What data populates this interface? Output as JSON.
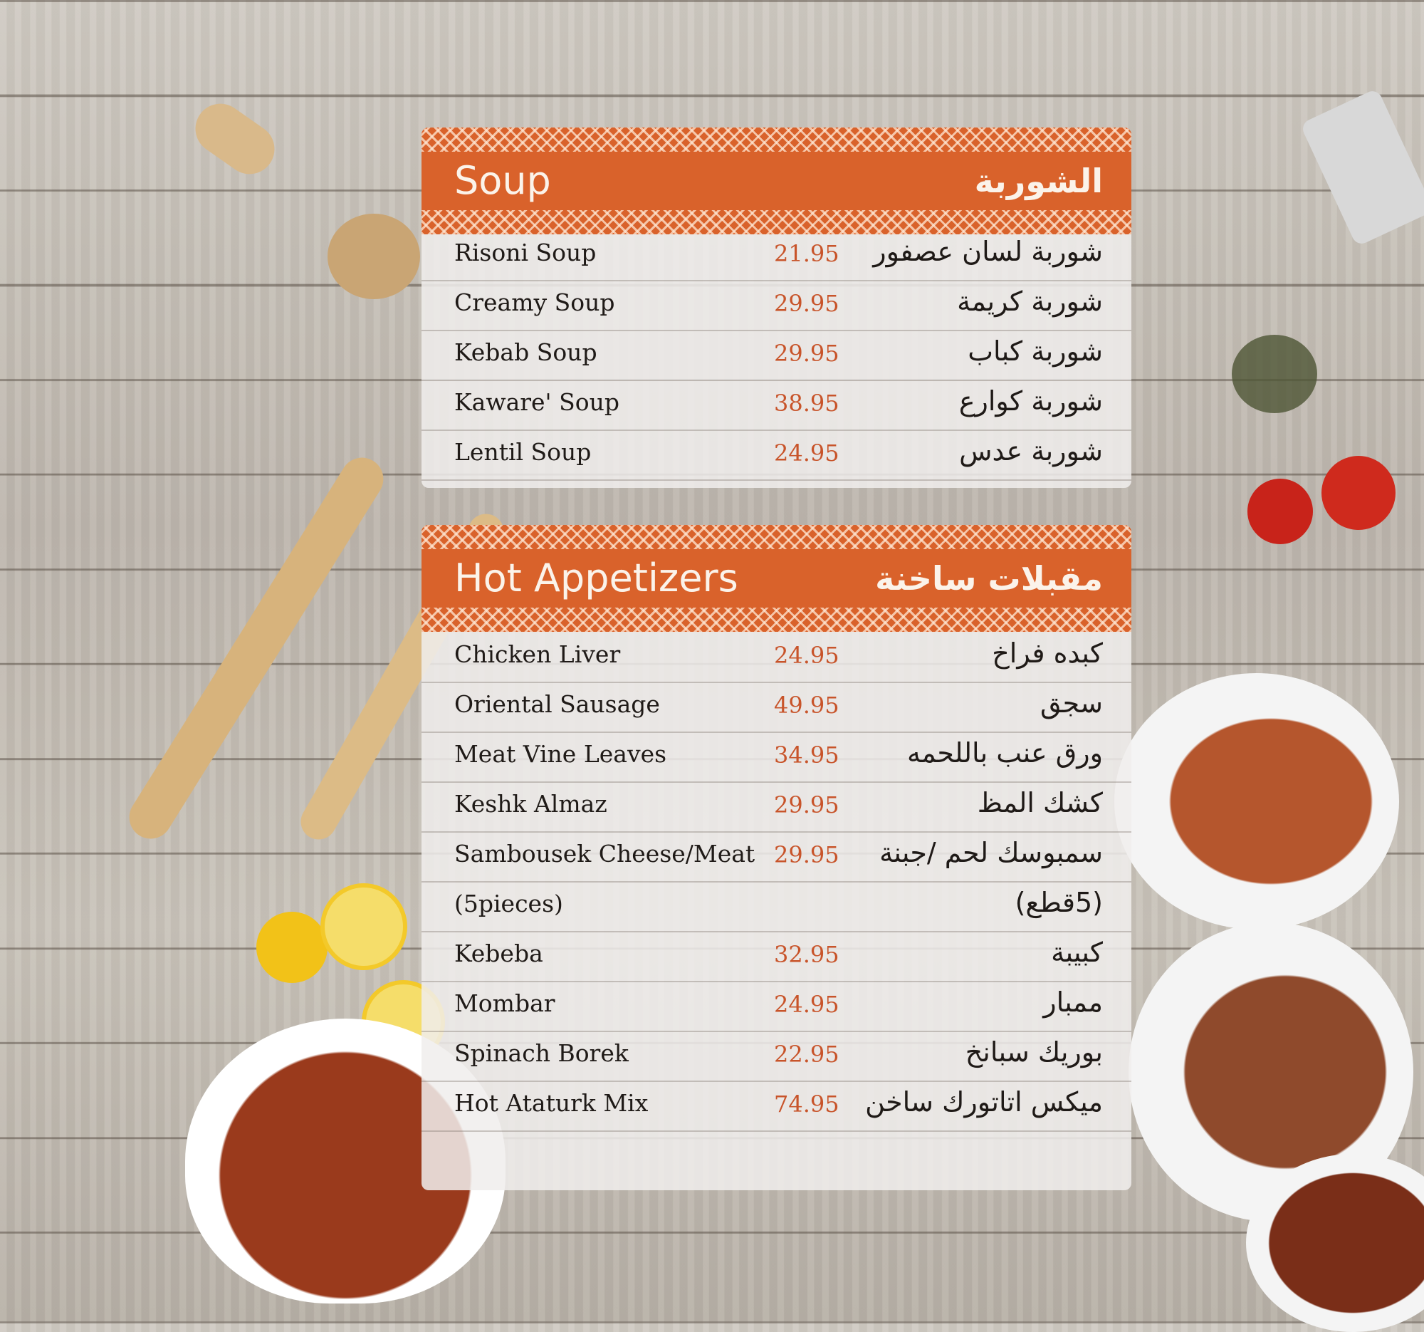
{
  "colors": {
    "accent": "#d9622b",
    "price": "#c8542a",
    "text": "#1f1a17"
  },
  "sections": [
    {
      "title": "Soup",
      "title_ar": "الشوربة",
      "items": [
        {
          "name": "Risoni Soup",
          "price": "21.95",
          "name_ar": "شوربة لسان عصفور"
        },
        {
          "name": "Creamy Soup",
          "price": "29.95",
          "name_ar": "شوربة كريمة"
        },
        {
          "name": "Kebab Soup",
          "price": "29.95",
          "name_ar": "شوربة كباب"
        },
        {
          "name": "Kaware' Soup",
          "price": "38.95",
          "name_ar": "شوربة كوارع"
        },
        {
          "name": "Lentil Soup",
          "price": "24.95",
          "name_ar": "شوربة عدس"
        }
      ]
    },
    {
      "title": "Hot Appetizers",
      "title_ar": "مقبلات ساخنة",
      "items": [
        {
          "name": "Chicken Liver",
          "price": "24.95",
          "name_ar": "كبده فراخ"
        },
        {
          "name": "Oriental Sausage",
          "price": "49.95",
          "name_ar": "سجق"
        },
        {
          "name": "Meat Vine Leaves",
          "price": "34.95",
          "name_ar": "ورق عنب باللحمه"
        },
        {
          "name": "Keshk Almaz",
          "price": "29.95",
          "name_ar": "كشك المظ"
        },
        {
          "name": "Sambousek Cheese/Meat",
          "price": "29.95",
          "name_ar": "سمبوسك لحم /جبنة"
        },
        {
          "name": "(5pieces)",
          "price": "",
          "name_ar": "(5قطع)"
        },
        {
          "name": "Kebeba",
          "price": "32.95",
          "name_ar": "كبيبة"
        },
        {
          "name": "Mombar",
          "price": "24.95",
          "name_ar": "ممبار"
        },
        {
          "name": "Spinach Borek",
          "price": "22.95",
          "name_ar": "بوريك سبانخ"
        },
        {
          "name": "Hot Ataturk Mix",
          "price": "74.95",
          "name_ar": "ميكس اتاتورك ساخن"
        }
      ]
    }
  ]
}
